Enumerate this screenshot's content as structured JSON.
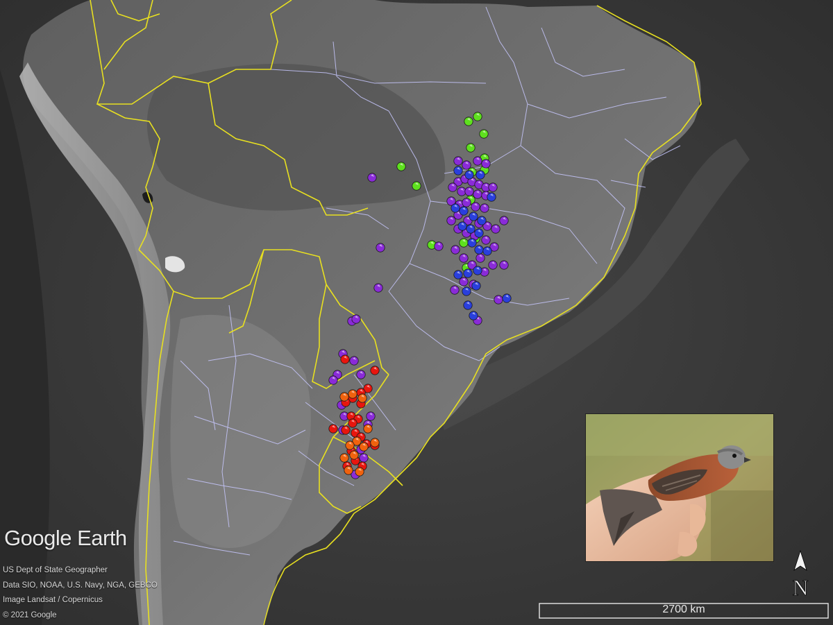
{
  "map": {
    "brand": "Google Earth",
    "credits": [
      "US Dept of State Geographer",
      "Data SIO, NOAA, U.S. Navy, NGA, GEBCO",
      "Image Landsat / Copernicus",
      "© 2021 Google"
    ],
    "scale_label": "2700 km",
    "compass_label": "N",
    "colors": {
      "ocean": "#3c3c3c",
      "land": "#6e6e6e",
      "country_border": "#e8e020",
      "state_border": "#c9c9ff",
      "green": "#5ee01e",
      "purple": "#8a2bd8",
      "blue": "#2a3fdc",
      "red": "#e8160e",
      "orange": "#f0620e"
    },
    "inset_photo": "photo-of-hand-holding-rufous-brown-seedeater-bird"
  }
}
